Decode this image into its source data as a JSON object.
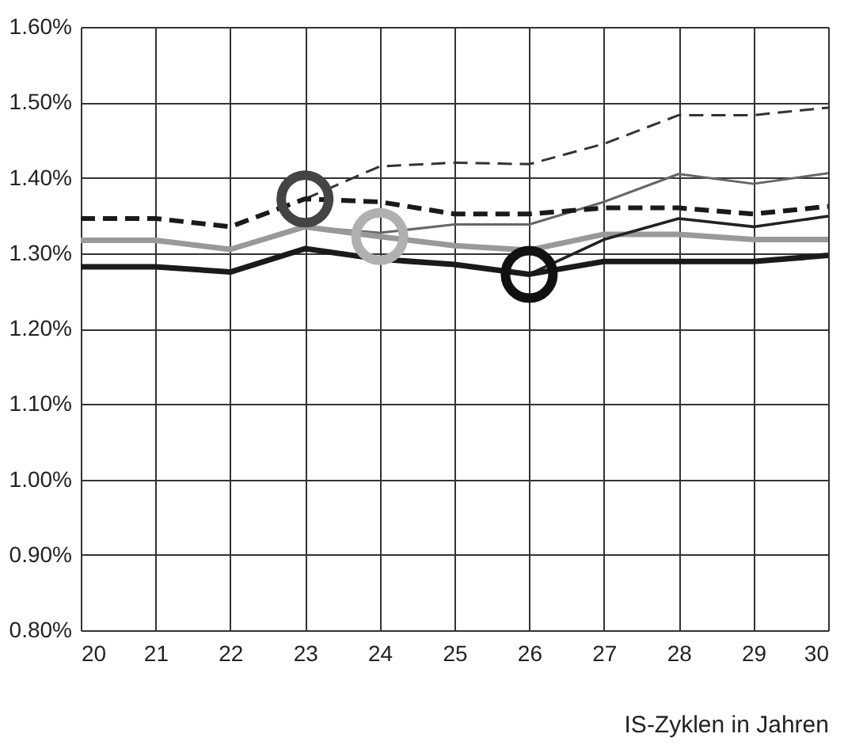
{
  "chart_data": {
    "type": "line",
    "xlabel": "IS-Zyklen in Jahren",
    "xlim": [
      20,
      30
    ],
    "xticks": [
      20,
      21,
      22,
      23,
      24,
      25,
      26,
      27,
      28,
      29,
      30
    ],
    "ylim": [
      0.8,
      1.6
    ],
    "yticks": [
      {
        "value": 0.8,
        "label": "0.80%"
      },
      {
        "value": 0.9,
        "label": "0.90%"
      },
      {
        "value": 1.0,
        "label": "1.00%"
      },
      {
        "value": 1.1,
        "label": "1.10%"
      },
      {
        "value": 1.2,
        "label": "1.20%"
      },
      {
        "value": 1.3,
        "label": "1.30%"
      },
      {
        "value": 1.4,
        "label": "1.40%"
      },
      {
        "value": 1.5,
        "label": "1.50%"
      },
      {
        "value": 1.6,
        "label": "1.60%"
      }
    ],
    "grid": true,
    "marker": "none",
    "series": [
      {
        "color": "#333333",
        "line_style": "dashed",
        "x": [
          23,
          24,
          25,
          26,
          27,
          28,
          29,
          30
        ],
        "values": [
          1.372,
          1.415,
          1.42,
          1.418,
          1.445,
          1.483,
          1.483,
          1.493
        ]
      },
      {
        "color": "#666666",
        "line_style": "solid",
        "x": [
          23,
          24,
          25,
          26,
          27,
          28,
          29,
          30
        ],
        "values": [
          1.335,
          1.327,
          1.338,
          1.338,
          1.368,
          1.405,
          1.392,
          1.406
        ]
      },
      {
        "color": "#1a1a1a",
        "line_style": "dashed",
        "x": [
          20,
          21,
          22,
          23,
          24,
          25,
          26,
          27,
          28,
          29,
          30
        ],
        "values": [
          1.346,
          1.346,
          1.335,
          1.372,
          1.368,
          1.352,
          1.352,
          1.36,
          1.36,
          1.352,
          1.362
        ]
      },
      {
        "color": "#999999",
        "line_style": "solid",
        "x": [
          20,
          21,
          22,
          23,
          24,
          25,
          26,
          27,
          28,
          29,
          30
        ],
        "values": [
          1.317,
          1.317,
          1.305,
          1.335,
          1.322,
          1.31,
          1.304,
          1.325,
          1.325,
          1.318,
          1.318
        ]
      },
      {
        "color": "#222222",
        "line_style": "solid",
        "x": [
          26,
          27,
          28,
          29,
          30
        ],
        "values": [
          1.272,
          1.318,
          1.346,
          1.335,
          1.349
        ]
      },
      {
        "color": "#1a1a1a",
        "line_style": "solid",
        "x": [
          20,
          21,
          22,
          23,
          24,
          25,
          26,
          27,
          28,
          29,
          30
        ],
        "values": [
          1.282,
          1.282,
          1.275,
          1.306,
          1.292,
          1.285,
          1.272,
          1.289,
          1.289,
          1.289,
          1.297
        ]
      },
      {
        "type": "scatter",
        "marker": "circle",
        "color": "#444444",
        "x": [
          23
        ],
        "values": [
          1.372
        ]
      },
      {
        "type": "scatter",
        "marker": "circle",
        "color": "#b0b0b0",
        "x": [
          24
        ],
        "values": [
          1.322
        ]
      },
      {
        "type": "scatter",
        "marker": "circle",
        "color": "#111111",
        "x": [
          26
        ],
        "values": [
          1.272
        ]
      }
    ]
  }
}
